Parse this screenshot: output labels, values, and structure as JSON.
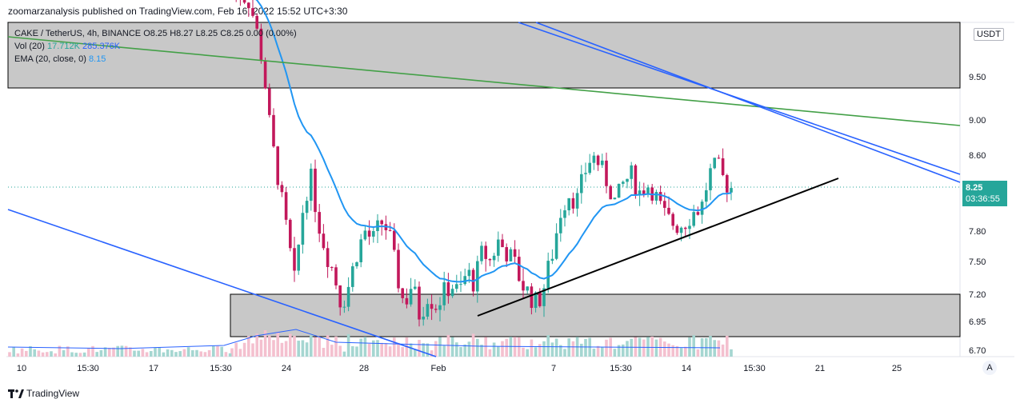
{
  "header": {
    "published": "zoomarzanalysis published on TradingView.com, Feb 16, 2022 15:52 UTC+3:30"
  },
  "legend": {
    "symbol": "CAKE / TetherUS, 4h, BINANCE",
    "ohlc": "O8.25  H8.27  L8.25  C8.25  0.00 (0.00%)",
    "vol_label": "Vol (20)",
    "vol_values": "17.712K",
    "vol_ma": "285.376K",
    "ema_label": "EMA (20, close, 0)",
    "ema_value": "8.15"
  },
  "price_axis": {
    "currency": "USDT",
    "last_price": "8.25",
    "countdown": "03:36:55",
    "auto_label": "A"
  },
  "brand": {
    "name": "TradingView"
  },
  "colors": {
    "up": "#26a69a",
    "down": "#c2185b",
    "ema": "#2196f3",
    "channel": "#2962ff",
    "green_line": "#43a047",
    "trend": "#000000",
    "zone": "#c8c8c8"
  },
  "chart_data": {
    "type": "candlestick",
    "symbol": "CAKE / TetherUS",
    "interval": "4h",
    "exchange": "BINANCE",
    "y_ticks": [
      6.7,
      6.95,
      7.2,
      7.5,
      7.8,
      8.6,
      9.0,
      9.5
    ],
    "y_tick_labels": [
      "6.70",
      "6.95",
      "7.20",
      "7.50",
      "7.80",
      "8.60",
      "9.00",
      "9.50"
    ],
    "x_tick_labels": [
      "10",
      "15:30",
      "17",
      "15:30",
      "24",
      "28",
      "Feb",
      "7",
      "15:30",
      "14",
      "15:30",
      "21",
      "25"
    ],
    "close_path": [
      [
        0,
        10.6
      ],
      [
        2,
        10.5
      ],
      [
        3,
        10.2
      ],
      [
        4,
        9.6
      ],
      [
        5,
        8.8
      ],
      [
        6,
        8.3
      ],
      [
        7,
        7.8
      ],
      [
        8,
        7.3
      ],
      [
        9,
        8.0
      ],
      [
        10,
        8.4
      ],
      [
        11,
        7.9
      ],
      [
        12,
        7.6
      ],
      [
        13,
        7.4
      ],
      [
        14,
        7.1
      ],
      [
        15,
        7.3
      ],
      [
        16,
        7.6
      ],
      [
        17,
        7.8
      ],
      [
        18,
        7.7
      ],
      [
        19,
        7.9
      ],
      [
        20,
        7.8
      ],
      [
        21,
        7.4
      ],
      [
        22,
        7.1
      ],
      [
        23,
        7.3
      ],
      [
        24,
        7.0
      ],
      [
        25,
        7.2
      ],
      [
        26,
        7.1
      ],
      [
        27,
        7.2
      ],
      [
        28,
        7.3
      ],
      [
        29,
        7.2
      ],
      [
        30,
        7.4
      ],
      [
        31,
        7.3
      ],
      [
        32,
        7.6
      ],
      [
        33,
        7.5
      ],
      [
        34,
        7.7
      ],
      [
        35,
        7.6
      ],
      [
        36,
        7.5
      ],
      [
        37,
        7.3
      ],
      [
        38,
        7.2
      ],
      [
        39,
        7.1
      ],
      [
        40,
        7.3
      ],
      [
        41,
        7.6
      ],
      [
        42,
        8.0
      ],
      [
        43,
        8.2
      ],
      [
        44,
        8.1
      ],
      [
        45,
        8.4
      ],
      [
        46,
        8.6
      ],
      [
        47,
        8.5
      ],
      [
        48,
        8.3
      ],
      [
        49,
        8.1
      ],
      [
        50,
        8.3
      ],
      [
        51,
        8.4
      ],
      [
        52,
        8.2
      ],
      [
        53,
        8.3
      ],
      [
        54,
        8.2
      ],
      [
        55,
        8.0
      ],
      [
        56,
        7.9
      ],
      [
        57,
        7.85
      ],
      [
        58,
        7.9
      ],
      [
        59,
        8.0
      ],
      [
        60,
        8.05
      ],
      [
        61,
        8.4
      ],
      [
        62,
        8.5
      ],
      [
        63,
        8.3
      ],
      [
        64,
        8.25
      ]
    ],
    "ema": {
      "name": "EMA (20, close, 0)",
      "last": 8.15
    },
    "volume": {
      "name": "Vol (20)",
      "last": "17.712K",
      "ma": "285.376K"
    },
    "last_price": 8.25,
    "zones": [
      {
        "from": 9.35,
        "to": 10.1
      },
      {
        "from": 6.82,
        "to": 7.2
      }
    ],
    "grid": false,
    "legend_position": "top-left"
  }
}
